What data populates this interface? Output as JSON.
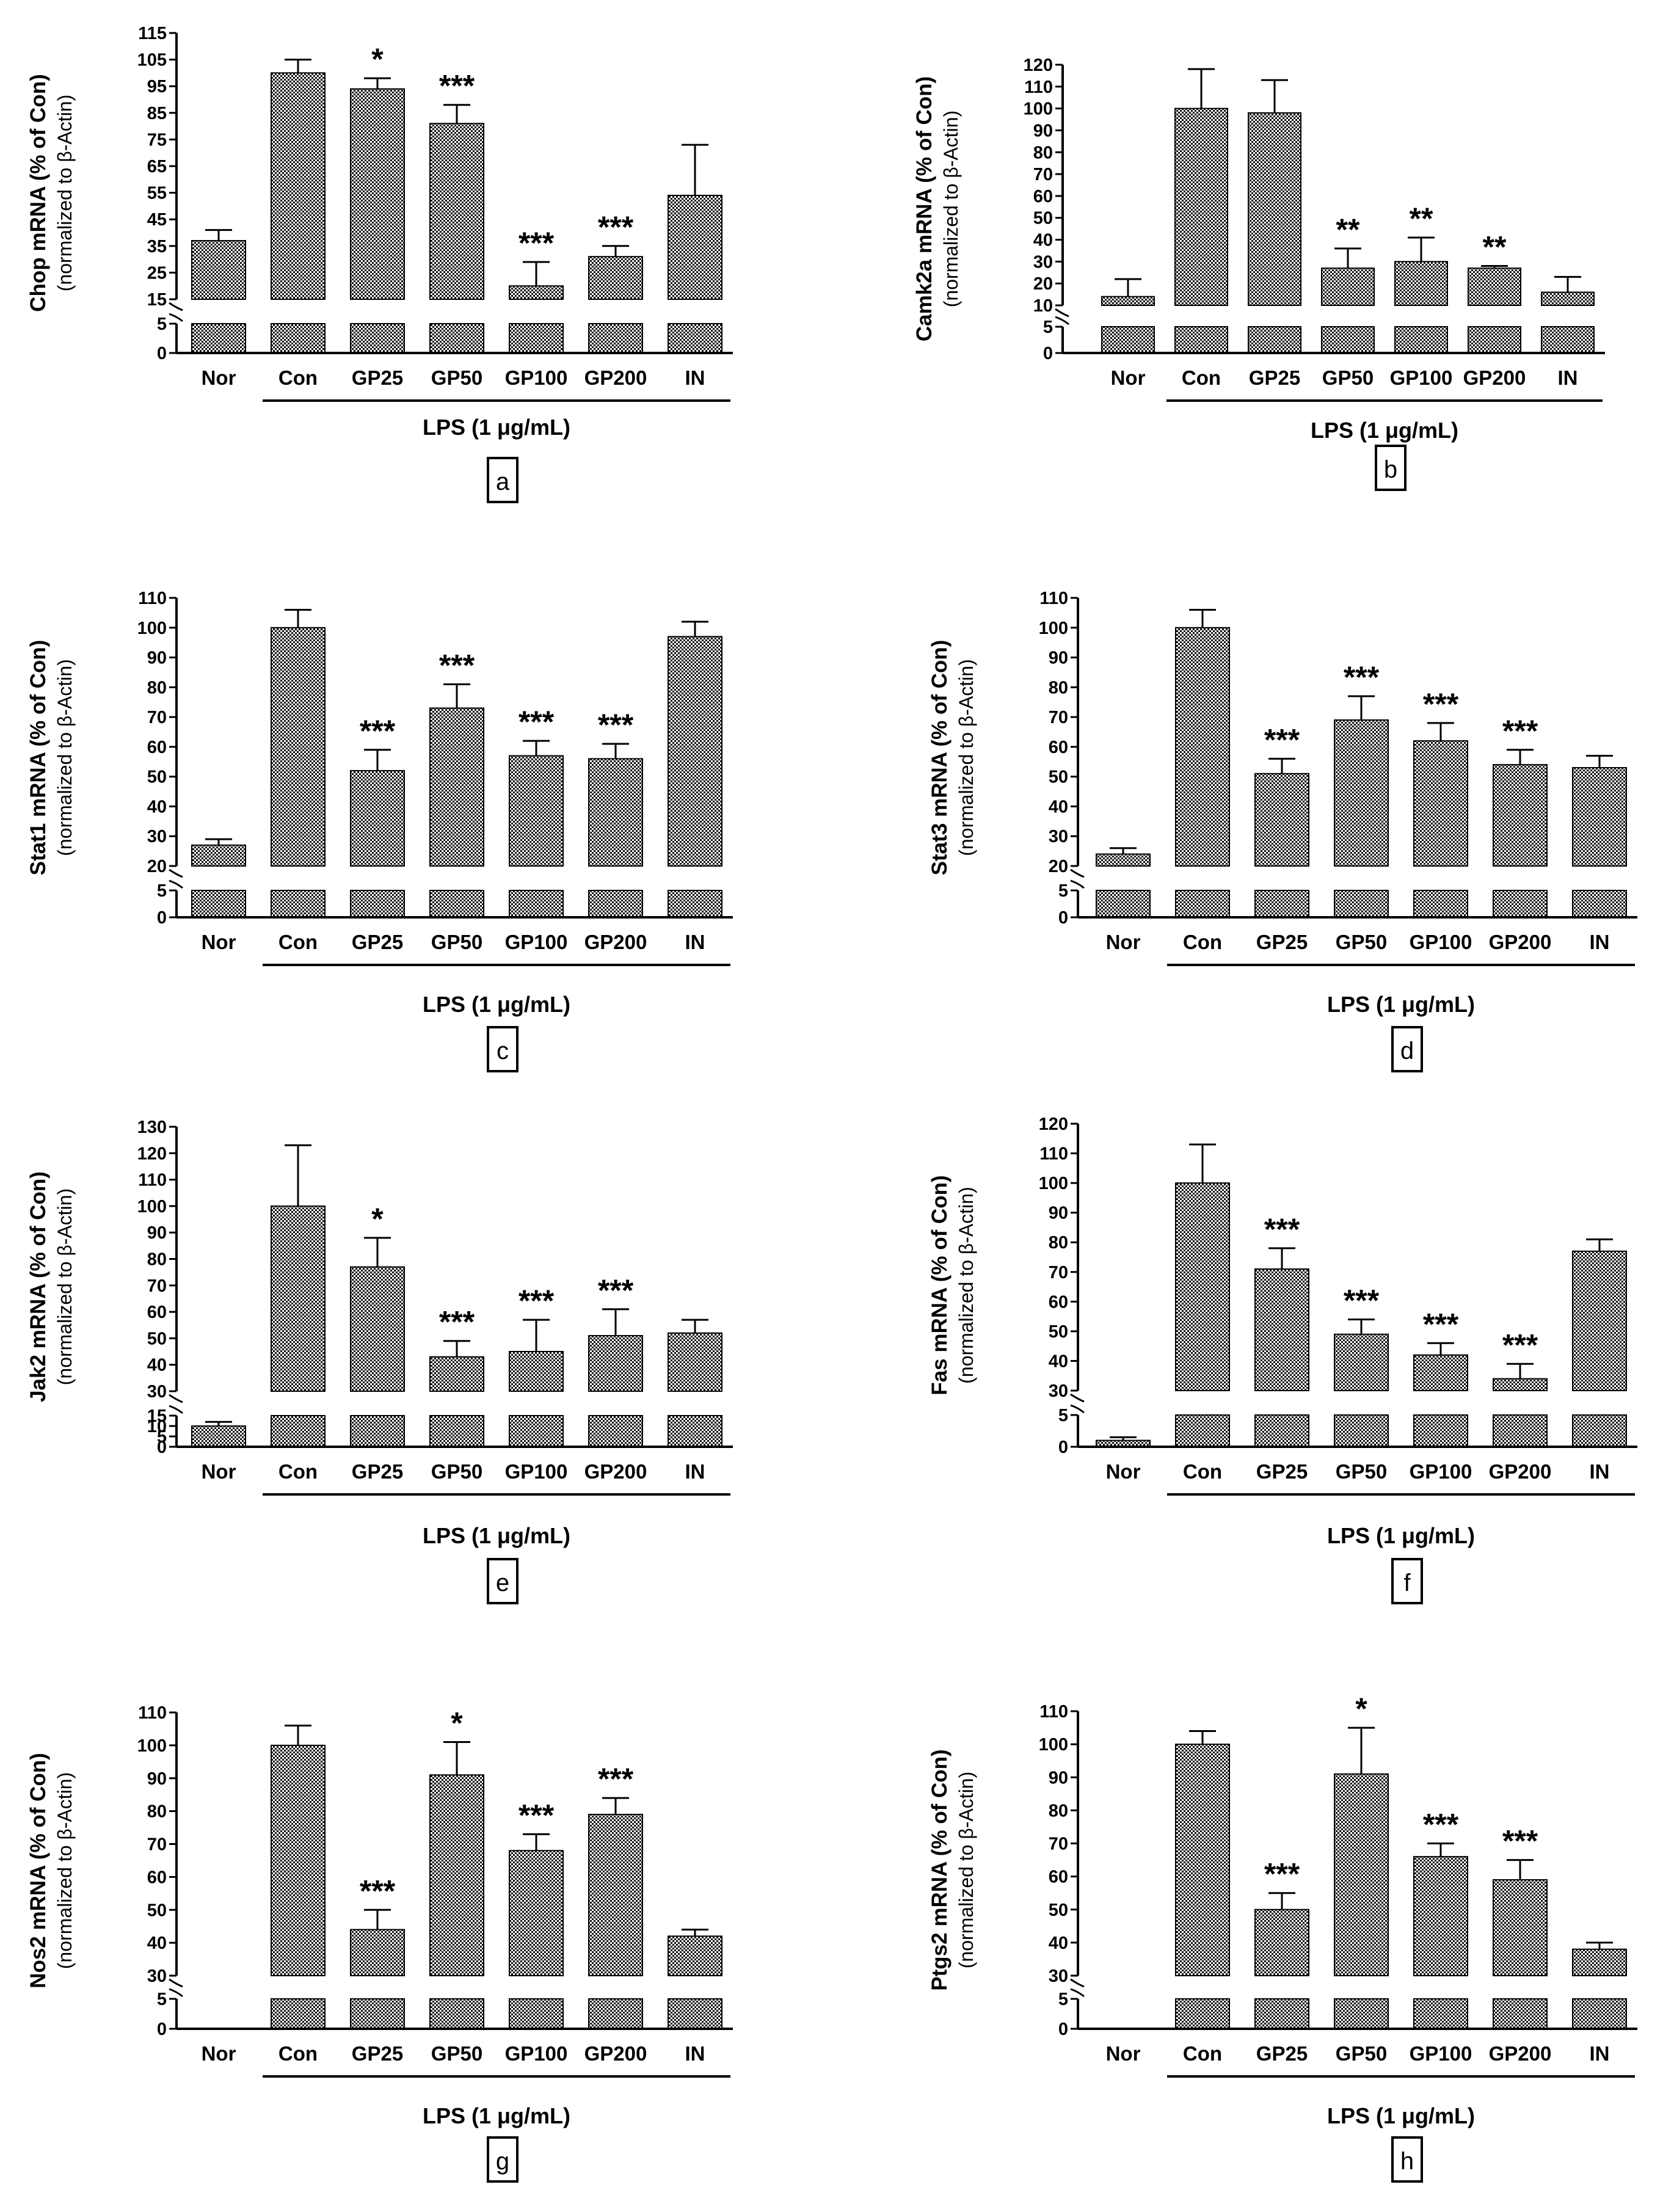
{
  "chart_data": [
    {
      "panel": "a",
      "type": "bar",
      "ylabel": "Chop mRNA (% of Con)",
      "ylabel_sub": "(normalized to β-Actin)",
      "treatment_label": "LPS (1 μg/mL)",
      "categories": [
        "Nor",
        "Con",
        "GP25",
        "GP50",
        "GP100",
        "GP200",
        "IN"
      ],
      "values": [
        37,
        100,
        94,
        81,
        20,
        31,
        54
      ],
      "errors": [
        4,
        5,
        4,
        7,
        9,
        4,
        19
      ],
      "significance": [
        "",
        "",
        "*",
        "***",
        "***",
        "***",
        ""
      ],
      "yticks_lower": [
        0,
        5
      ],
      "yticks_upper": [
        15,
        25,
        35,
        45,
        55,
        65,
        75,
        85,
        95,
        105,
        115
      ],
      "ylim_lower": [
        0,
        5
      ],
      "ylim_upper": [
        15,
        115
      ]
    },
    {
      "panel": "b",
      "type": "bar",
      "ylabel": "Camk2a mRNA (% of Con)",
      "ylabel_sub": "(normalized to β-Actin)",
      "treatment_label": "LPS (1 μg/mL)",
      "categories": [
        "Nor",
        "Con",
        "GP25",
        "GP50",
        "GP100",
        "GP200",
        "IN"
      ],
      "values": [
        14,
        100,
        98,
        27,
        30,
        27,
        16
      ],
      "errors": [
        8,
        18,
        15,
        9,
        11,
        1,
        7
      ],
      "significance": [
        "",
        "",
        "",
        "**",
        "**",
        "**",
        ""
      ],
      "yticks_lower": [
        0,
        5
      ],
      "yticks_upper": [
        10,
        20,
        30,
        40,
        50,
        60,
        70,
        80,
        90,
        100,
        110,
        120
      ],
      "ylim_lower": [
        0,
        5
      ],
      "ylim_upper": [
        10,
        120
      ]
    },
    {
      "panel": "c",
      "type": "bar",
      "ylabel": "Stat1 mRNA (% of Con)",
      "ylabel_sub": "(normalized to β-Actin)",
      "treatment_label": "LPS (1 μg/mL)",
      "categories": [
        "Nor",
        "Con",
        "GP25",
        "GP50",
        "GP100",
        "GP200",
        "IN"
      ],
      "values": [
        27,
        100,
        52,
        73,
        57,
        56,
        97
      ],
      "errors": [
        2,
        6,
        7,
        8,
        5,
        5,
        5
      ],
      "significance": [
        "",
        "",
        "***",
        "***",
        "***",
        "***",
        ""
      ],
      "yticks_lower": [
        0,
        5
      ],
      "yticks_upper": [
        20,
        30,
        40,
        50,
        60,
        70,
        80,
        90,
        100,
        110
      ],
      "ylim_lower": [
        0,
        5
      ],
      "ylim_upper": [
        20,
        110
      ]
    },
    {
      "panel": "d",
      "type": "bar",
      "ylabel": "Stat3 mRNA (% of Con)",
      "ylabel_sub": "(normalized to β-Actin)",
      "treatment_label": "LPS (1 μg/mL)",
      "categories": [
        "Nor",
        "Con",
        "GP25",
        "GP50",
        "GP100",
        "GP200",
        "IN"
      ],
      "values": [
        24,
        100,
        51,
        69,
        62,
        54,
        53
      ],
      "errors": [
        2,
        6,
        5,
        8,
        6,
        5,
        4
      ],
      "significance": [
        "",
        "",
        "***",
        "***",
        "***",
        "***",
        ""
      ],
      "yticks_lower": [
        0,
        5
      ],
      "yticks_upper": [
        20,
        30,
        40,
        50,
        60,
        70,
        80,
        90,
        100,
        110
      ],
      "ylim_lower": [
        0,
        5
      ],
      "ylim_upper": [
        20,
        110
      ]
    },
    {
      "panel": "e",
      "type": "bar",
      "ylabel": "Jak2 mRNA (% of Con)",
      "ylabel_sub": "(normalized to β-Actin)",
      "treatment_label": "LPS (1 μg/mL)",
      "categories": [
        "Nor",
        "Con",
        "GP25",
        "GP50",
        "GP100",
        "GP200",
        "IN"
      ],
      "values": [
        10,
        100,
        77,
        43,
        45,
        51,
        52
      ],
      "errors": [
        2,
        23,
        11,
        6,
        12,
        10,
        5
      ],
      "significance": [
        "",
        "",
        "*",
        "***",
        "***",
        "***",
        ""
      ],
      "yticks_lower": [
        0,
        5,
        10,
        15
      ],
      "yticks_upper": [
        30,
        40,
        50,
        60,
        70,
        80,
        90,
        100,
        110,
        120,
        130
      ],
      "ylim_lower": [
        0,
        15
      ],
      "ylim_upper": [
        30,
        130
      ]
    },
    {
      "panel": "f",
      "type": "bar",
      "ylabel": "Fas mRNA (% of Con)",
      "ylabel_sub": "(normalized to β-Actin)",
      "treatment_label": "LPS (1 μg/mL)",
      "categories": [
        "Nor",
        "Con",
        "GP25",
        "GP50",
        "GP100",
        "GP200",
        "IN"
      ],
      "values": [
        1,
        100,
        71,
        49,
        42,
        34,
        77
      ],
      "errors": [
        0.5,
        13,
        7,
        5,
        4,
        5,
        4
      ],
      "significance": [
        "",
        "",
        "***",
        "***",
        "***",
        "***",
        ""
      ],
      "yticks_lower": [
        0,
        5
      ],
      "yticks_upper": [
        30,
        40,
        50,
        60,
        70,
        80,
        90,
        100,
        110,
        120
      ],
      "ylim_lower": [
        0,
        5
      ],
      "ylim_upper": [
        30,
        120
      ]
    },
    {
      "panel": "g",
      "type": "bar",
      "ylabel": "Nos2 mRNA (% of Con)",
      "ylabel_sub": "(normalized to β-Actin)",
      "treatment_label": "LPS (1 μg/mL)",
      "categories": [
        "Nor",
        "Con",
        "GP25",
        "GP50",
        "GP100",
        "GP200",
        "IN"
      ],
      "values": [
        0,
        100,
        44,
        91,
        68,
        79,
        42
      ],
      "errors": [
        0,
        6,
        6,
        10,
        5,
        5,
        2
      ],
      "significance": [
        "",
        "",
        "***",
        "*",
        "***",
        "***",
        ""
      ],
      "yticks_lower": [
        0,
        5
      ],
      "yticks_upper": [
        30,
        40,
        50,
        60,
        70,
        80,
        90,
        100,
        110
      ],
      "ylim_lower": [
        0,
        5
      ],
      "ylim_upper": [
        30,
        110
      ]
    },
    {
      "panel": "h",
      "type": "bar",
      "ylabel": "Ptgs2 mRNA (% of Con)",
      "ylabel_sub": "(normalized to β-Actin)",
      "treatment_label": "LPS (1 μg/mL)",
      "categories": [
        "Nor",
        "Con",
        "GP25",
        "GP50",
        "GP100",
        "GP200",
        "IN"
      ],
      "values": [
        0,
        100,
        50,
        91,
        66,
        59,
        38
      ],
      "errors": [
        0,
        4,
        5,
        14,
        4,
        6,
        2
      ],
      "significance": [
        "",
        "",
        "***",
        "*",
        "***",
        "***",
        ""
      ],
      "yticks_lower": [
        0,
        5
      ],
      "yticks_upper": [
        30,
        40,
        50,
        60,
        70,
        80,
        90,
        100,
        110
      ],
      "ylim_lower": [
        0,
        5
      ],
      "ylim_upper": [
        30,
        110
      ]
    }
  ],
  "colors": {
    "ink": "#000000",
    "bar_fill": "#8a8a8a",
    "background": "#ffffff"
  }
}
